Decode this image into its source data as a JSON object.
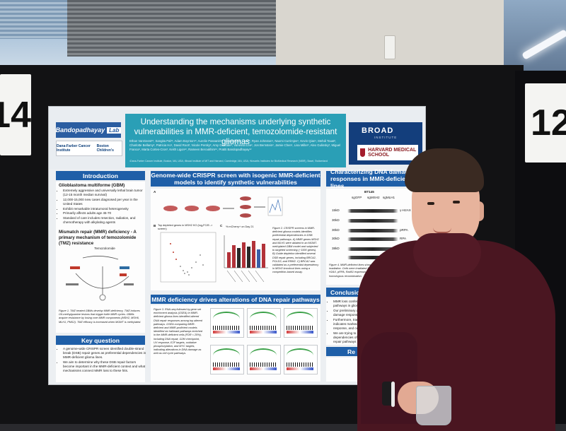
{
  "booth_numbers": {
    "left": "14",
    "right": "12"
  },
  "poster": {
    "lab_logo": {
      "name": "Bandopadhayay",
      "word": "Lab"
    },
    "institution_logos": [
      "Dana-Farber Cancer Institute",
      "Boston Children's"
    ],
    "title": "Understanding the mechanisms underlying synthetic vulnerabilities in MMR-deficient, temozolomide-resistant gliomas",
    "authors": "Ethan VanGeest¹², Sangita Pal¹², Adam Boynton¹², Aurelie Passaniti¹², Seung Hyun Choi¹², Ryan Johnston¹, Naomi Currimjee¹, Kevin Qian¹, Mehdi Touat², Charlotte Bellamy², Patricia Ho¹, David Root², Nicole Persky², Amy Goodale², Vanessa Lee², Jon Bernstein², Jamie Chen¹, Lisa Miller², Alex Gulinsky², Miguel Franco², Marta Cortes-Cros³, Keith Ligon¹², Rameen Beroukhim¹², Pratiti Bandopadhayay¹²",
    "affiliations": "¹Dana-Farber Cancer Institute, Boston, MA, USA; ²Broad Institute of MIT and Harvard, Cambridge, MA, USA; ³Novartis Institutes for BioMedical Research (NIBR), Basel, Switzerland",
    "right_logos": {
      "broad": "BROAD",
      "broad_sub": "INSTITUTE",
      "hms": "HARVARD MEDICAL SCHOOL"
    },
    "introduction": {
      "heading": "Introduction",
      "gbm_title": "Glioblastoma multiforme (GBM)",
      "gbm_bullets": [
        "Extremely aggressive and universally lethal brain tumor (12-15 month median survival)",
        "12,000-15,000 new cases diagnosed per year in the United States",
        "Exhibit remarkable intratumoral heterogeneity",
        "Primarily affects adults age 45-70",
        "Standard of care includes resection, radiation, and chemotherapy with alkylating agents"
      ],
      "mmr_title": "Mismatch repair (MMR) deficiency - A primary mechanism of temozolomide (TMZ) resistance",
      "diagram_label": "Temozolomide",
      "figure_caption": "Figure 1. TMZ treated GBMs develop MMR-deficiency. TMZ induces O6-methylguanine lesions that trigger futile MMR cycles. GBMs acquire resistance by losing core MMR components (MSH2, MSH6, MLH1, PMS2). TMZ efficacy is increased when MGMT is methylated."
    },
    "key_question": {
      "heading": "Key question",
      "bullets": [
        "A genome-wide CRISPR screen identified double-strand break (DSB) repair genes as preferential dependencies in MMR-deficient glioma lines.",
        "We aim to determine why these DSB repair factors become important in the MMR-deficient context and what mechanisms connect MMR loss to these hits."
      ]
    },
    "screen": {
      "heading": "Genome-wide CRISPR screen with isogenic MMR-deficient models to identify synthetic vulnerabilities",
      "panel_labels": [
        "A",
        "B",
        "C"
      ],
      "figure_caption": "Figure 2. CRISPR screens in MMR-deficient glioma models identifies preferential dependencies in DSB repair pathways. A) MMR genes MSH2 and MLH1 were ablated in an MGMT-methylated GBM model and subjected to targeted screening (~1000 genes). B) Guide depletion identified several DSB repair genes, including BRCA2, POLD3, and RRM2. C) BRCA2 was validated as a preferential dependency in MSH2 knockout lines using a competition-based assay.",
      "chart_title": "% mCherry+ on Day 21",
      "volcano_title": "Top depleted genes in MSH2 KO (log₂FC/B -> screen)"
    },
    "dna_damage": {
      "heading": "Characterizing DNA damage responses in MMR-deficient lines",
      "cell_line": "BT145",
      "lanes": [
        "sgGFP",
        "sgMSH2",
        "sgMLH1"
      ],
      "bands": [
        {
          "kda": "15kD",
          "protein": "γ-H2AX"
        },
        {
          "kda": "30kD",
          "protein": ""
        },
        {
          "kda": "30kD",
          "protein": "pRPA"
        },
        {
          "kda": "30kD",
          "protein": "RPA"
        },
        {
          "kda": "38kD",
          "protein": "Rad51"
        },
        {
          "kda": "",
          "protein": "β-actin"
        }
      ],
      "figure_caption": "Figure 4. MMR-deficient lines show differences in marker dynamics following irradiation. Cells were irradiated MSH2 and MLH1 loss increase levels of γ-H2AX, pRPA, Rad51 expression suggesting more DSBs or ineffective homologous recombination."
    },
    "repair": {
      "heading": "MMR deficiency drives alterations of DNA repair pathways",
      "figure_caption": "Figure 3. RNA-seq followed by gene set enrichment analysis (GSEA) in MMR-deficient glioma lines identified altered DNA repair responses among top altered pathways. GSEA comparing MMR-deficient and MMR-proficient models identified six hallmark pathways enriched in the MMR-deficient cells (FDR < 25%), including DNA repair, G2M checkpoint, UV response, E2F targets, oxidative phosphorylation, and MYC targets, indicating alterations in DNA damage as well as cell cycle pathways."
    },
    "conclusions": {
      "heading": "Conclusions & F",
      "bullets": [
        "MMR loss confers preferential dependencies on DSB repair pathways in glioma",
        "Our preliminary data suggest MMR-deficient cells exhibit DNA damage responses",
        "Furthermore, transcriptional profiling of MMR-deficient cell lines indicates marked expression changes in DNA repair, damage response, and cell cycle",
        "We are trying to understand the mechanisms behind increased dependencies of MMR-deficient glioma lines on specific DSB repair pathways"
      ],
      "refs_heading": "Re"
    }
  }
}
